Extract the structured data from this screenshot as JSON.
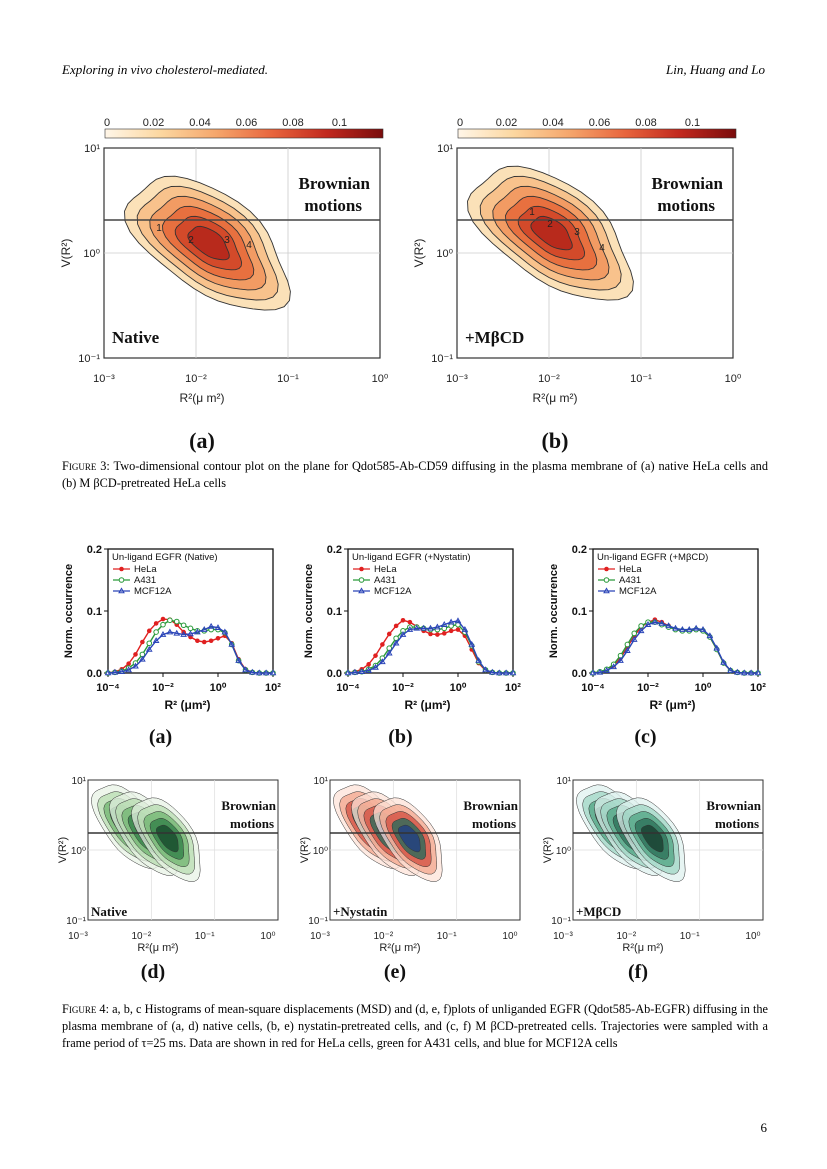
{
  "header": {
    "left": "Exploring in vivo cholesterol-mediated.",
    "right": "Lin, Huang and Lo"
  },
  "page_number": "6",
  "figure3": {
    "colorbar_ticks": [
      "0",
      "0.02",
      "0.04",
      "0.06",
      "0.08",
      "0.1"
    ],
    "colorbar_stops": [
      "#fff6e8",
      "#fcd7a0",
      "#f5a66c",
      "#e8653d",
      "#c1281e",
      "#7a0c0c"
    ],
    "panels": [
      {
        "letter": "(a)",
        "condition": "Native",
        "region_label_1": "Brownian",
        "region_label_2": "motions",
        "peak_labels": [
          "1",
          "2",
          "3",
          "4"
        ]
      },
      {
        "letter": "(b)",
        "condition": "+MβCD",
        "region_label_1": "Brownian",
        "region_label_2": "motions",
        "peak_labels": [
          "1",
          "2",
          "3",
          "4"
        ]
      }
    ],
    "ylabel": "V(R²)",
    "xlabel": "R²(μ m²)",
    "xticks": [
      "10⁻³",
      "10⁻²",
      "10⁻¹",
      "10⁰"
    ],
    "yticks": [
      "10¹",
      "10⁰",
      "10⁻¹"
    ],
    "caption_label": "Figure 3:",
    "caption_text": " Two-dimensional contour plot on the plane for Qdot585-Ab-CD59 diffusing in the plasma membrane of (a) native HeLa cells and (b) M βCD-pretreated HeLa cells"
  },
  "figure4": {
    "hist_ylabel": "Norm. occurrence",
    "hist_xlabel": "R² (μm²)",
    "hist_xticks": [
      "10⁻⁴",
      "10⁻²",
      "10⁰",
      "10²"
    ],
    "hist_yticks": [
      "0.2",
      "0.1",
      "0.0"
    ],
    "legend_labels": [
      "HeLa",
      "A431",
      "MCF12A"
    ],
    "hist_titles": [
      "Un-ligand EGFR (Native)",
      "Un-ligand EGFR (+Nystatin)",
      "Un-ligand EGFR (+MβCD)"
    ],
    "hist_letters": [
      "(a)",
      "(b)",
      "(c)"
    ],
    "contour_letters": [
      "(d)",
      "(e)",
      "(f)"
    ],
    "contour_conditions": [
      "Native",
      "+Nystatin",
      "+MβCD"
    ],
    "contour_region_label_1": "Brownian",
    "contour_region_label_2": "motions",
    "contour_ylabel": "V(R²)",
    "contour_xlabel": "R²(μ m²)",
    "contour_xticks": [
      "10⁻³",
      "10⁻²",
      "10⁻¹",
      "10⁰"
    ],
    "contour_yticks": [
      "10¹",
      "10⁰",
      "10⁻¹"
    ],
    "colors": {
      "HeLa": "#e02020",
      "A431": "#2a9a3a",
      "MCF12A": "#2b45b8"
    },
    "caption_label": "Figure 4:",
    "caption_text": " a, b, c Histograms of mean-square displacements (MSD) and (d, e, f)plots of unliganded EGFR (Qdot585-Ab-EGFR) diffusing in the plasma membrane of (a, d) native cells, (b, e) nystatin-pretreated cells, and (c, f) M βCD-pretreated cells. Trajectories were sampled with a frame period of τ=25 ms. Data are shown in red for HeLa cells, green for A431 cells, and blue for MCF12A cells"
  },
  "chart_data": [
    {
      "type": "line",
      "title": "Un-ligand EGFR (Native)",
      "xlabel": "R² (μm²)",
      "ylabel": "Norm. occurrence",
      "x_log10": [
        -4.0,
        -3.75,
        -3.5,
        -3.25,
        -3.0,
        -2.75,
        -2.5,
        -2.25,
        -2.0,
        -1.75,
        -1.5,
        -1.25,
        -1.0,
        -0.75,
        -0.5,
        -0.25,
        0.0,
        0.25,
        0.5,
        0.75,
        1.0,
        1.25,
        1.5,
        1.75,
        2.0
      ],
      "xlim_log10": [
        -4,
        2
      ],
      "ylim": [
        0,
        0.2
      ],
      "series": [
        {
          "name": "HeLa",
          "values": [
            0,
            0.002,
            0.006,
            0.015,
            0.03,
            0.05,
            0.068,
            0.08,
            0.087,
            0.086,
            0.078,
            0.066,
            0.058,
            0.052,
            0.05,
            0.052,
            0.056,
            0.06,
            0.048,
            0.022,
            0.006,
            0.001,
            0,
            0,
            0
          ]
        },
        {
          "name": "A431",
          "values": [
            0,
            0.001,
            0.003,
            0.008,
            0.016,
            0.03,
            0.048,
            0.066,
            0.078,
            0.085,
            0.083,
            0.077,
            0.072,
            0.068,
            0.068,
            0.07,
            0.07,
            0.065,
            0.046,
            0.02,
            0.005,
            0.001,
            0,
            0,
            0
          ]
        },
        {
          "name": "MCF12A",
          "values": [
            0,
            0.001,
            0.002,
            0.005,
            0.011,
            0.022,
            0.038,
            0.052,
            0.062,
            0.066,
            0.064,
            0.062,
            0.063,
            0.066,
            0.07,
            0.075,
            0.073,
            0.066,
            0.046,
            0.02,
            0.005,
            0.001,
            0,
            0,
            0
          ]
        }
      ]
    },
    {
      "type": "line",
      "title": "Un-ligand EGFR (+Nystatin)",
      "xlabel": "R² (μm²)",
      "ylabel": "Norm. occurrence",
      "x_log10": [
        -4.0,
        -3.75,
        -3.5,
        -3.25,
        -3.0,
        -2.75,
        -2.5,
        -2.25,
        -2.0,
        -1.75,
        -1.5,
        -1.25,
        -1.0,
        -0.75,
        -0.5,
        -0.25,
        0.0,
        0.25,
        0.5,
        0.75,
        1.0,
        1.25,
        1.5,
        1.75,
        2.0
      ],
      "xlim_log10": [
        -4,
        2
      ],
      "ylim": [
        0,
        0.2
      ],
      "series": [
        {
          "name": "HeLa",
          "values": [
            0,
            0.002,
            0.006,
            0.014,
            0.028,
            0.046,
            0.063,
            0.076,
            0.085,
            0.082,
            0.075,
            0.068,
            0.063,
            0.062,
            0.064,
            0.068,
            0.07,
            0.06,
            0.038,
            0.016,
            0.004,
            0.001,
            0,
            0,
            0
          ]
        },
        {
          "name": "A431",
          "values": [
            0,
            0.001,
            0.002,
            0.006,
            0.012,
            0.024,
            0.04,
            0.056,
            0.068,
            0.074,
            0.074,
            0.072,
            0.07,
            0.07,
            0.072,
            0.076,
            0.078,
            0.066,
            0.044,
            0.018,
            0.005,
            0.001,
            0,
            0,
            0
          ]
        },
        {
          "name": "MCF12A",
          "values": [
            0,
            0.001,
            0.002,
            0.004,
            0.009,
            0.018,
            0.032,
            0.048,
            0.062,
            0.07,
            0.072,
            0.072,
            0.072,
            0.074,
            0.078,
            0.082,
            0.084,
            0.07,
            0.046,
            0.02,
            0.005,
            0.001,
            0,
            0,
            0
          ]
        }
      ]
    },
    {
      "type": "line",
      "title": "Un-ligand EGFR (+MβCD)",
      "xlabel": "R² (μm²)",
      "ylabel": "Norm. occurrence",
      "x_log10": [
        -4.0,
        -3.75,
        -3.5,
        -3.25,
        -3.0,
        -2.75,
        -2.5,
        -2.25,
        -2.0,
        -1.75,
        -1.5,
        -1.25,
        -1.0,
        -0.75,
        -0.5,
        -0.25,
        0.0,
        0.25,
        0.5,
        0.75,
        1.0,
        1.25,
        1.5,
        1.75,
        2.0
      ],
      "xlim_log10": [
        -4,
        2
      ],
      "ylim": [
        0,
        0.2
      ],
      "series": [
        {
          "name": "HeLa",
          "values": [
            0,
            0.002,
            0.005,
            0.012,
            0.024,
            0.042,
            0.06,
            0.074,
            0.082,
            0.086,
            0.082,
            0.076,
            0.07,
            0.068,
            0.068,
            0.07,
            0.068,
            0.058,
            0.038,
            0.016,
            0.004,
            0.001,
            0,
            0,
            0
          ]
        },
        {
          "name": "A431",
          "values": [
            0,
            0.002,
            0.006,
            0.014,
            0.028,
            0.046,
            0.064,
            0.076,
            0.082,
            0.082,
            0.078,
            0.074,
            0.07,
            0.068,
            0.068,
            0.07,
            0.068,
            0.058,
            0.038,
            0.016,
            0.004,
            0.001,
            0,
            0,
            0
          ]
        },
        {
          "name": "MCF12A",
          "values": [
            0,
            0.001,
            0.004,
            0.01,
            0.02,
            0.036,
            0.054,
            0.068,
            0.078,
            0.082,
            0.08,
            0.076,
            0.072,
            0.07,
            0.07,
            0.072,
            0.07,
            0.06,
            0.04,
            0.017,
            0.004,
            0.001,
            0,
            0,
            0
          ]
        }
      ]
    }
  ]
}
